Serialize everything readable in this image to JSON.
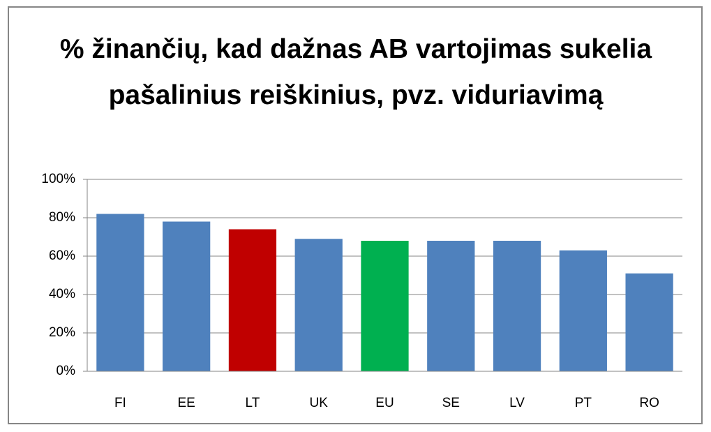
{
  "chart_data": {
    "type": "bar",
    "title": "% žinančių, kad dažnas AB vartojimas sukelia pašalinius reiškinius, pvz. viduriavimą",
    "categories": [
      "FI",
      "EE",
      "LT",
      "UK",
      "EU",
      "SE",
      "LV",
      "PT",
      "RO"
    ],
    "values": [
      82,
      78,
      74,
      69,
      68,
      68,
      68,
      63,
      51
    ],
    "colors": [
      "#4f81bd",
      "#4f81bd",
      "#c00000",
      "#4f81bd",
      "#00b050",
      "#4f81bd",
      "#4f81bd",
      "#4f81bd",
      "#4f81bd"
    ],
    "ylim": [
      0,
      100
    ],
    "yticks": [
      {
        "value": 0,
        "label": "0%"
      },
      {
        "value": 20,
        "label": "20%"
      },
      {
        "value": 40,
        "label": "40%"
      },
      {
        "value": 60,
        "label": "60%"
      },
      {
        "value": 80,
        "label": "80%"
      },
      {
        "value": 100,
        "label": "100%"
      }
    ],
    "grid": true
  }
}
